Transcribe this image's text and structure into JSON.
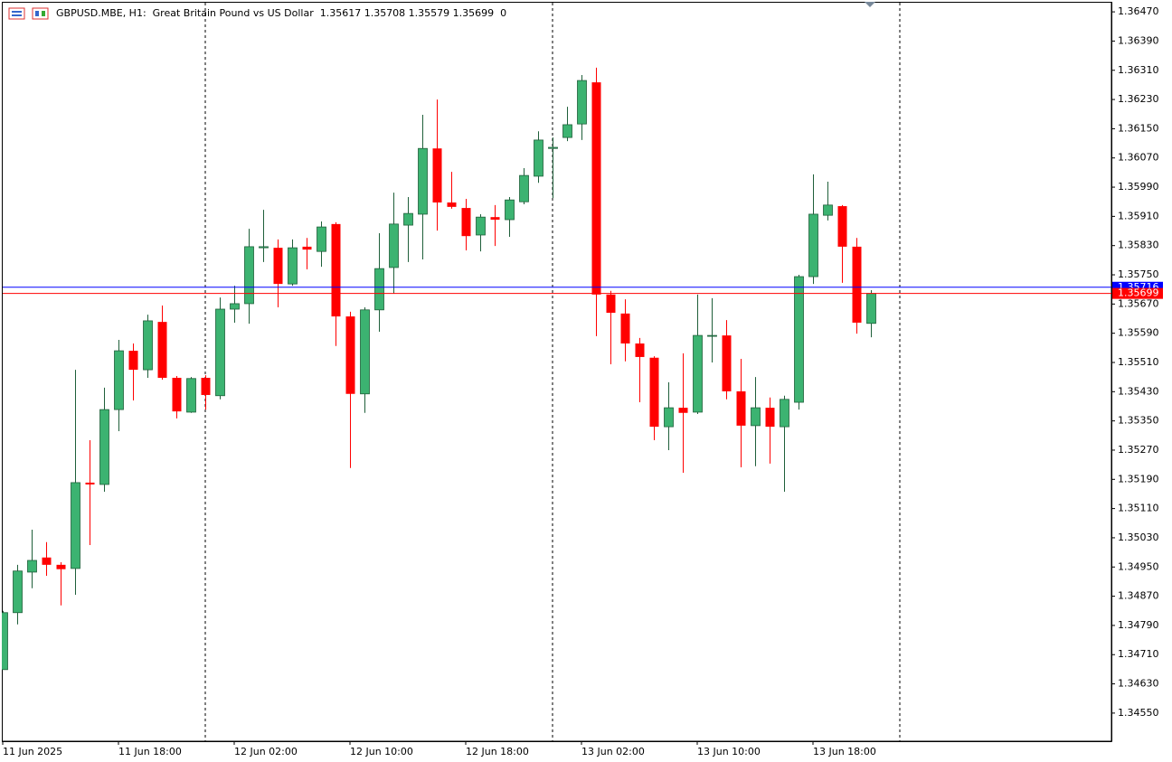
{
  "chart_data": {
    "type": "candlestick",
    "title": "GBPUSD.MBE, H1:  Great Britain Pound vs US Dollar  1.35617 1.35708 1.35579 1.35699  0",
    "categories": [
      "11 Jun 2025",
      null,
      null,
      null,
      null,
      null,
      null,
      null,
      "11 Jun 18:00",
      null,
      null,
      null,
      null,
      null,
      null,
      null,
      "12 Jun 02:00",
      null,
      null,
      null,
      null,
      null,
      null,
      null,
      "12 Jun 10:00",
      null,
      null,
      null,
      null,
      null,
      null,
      null,
      "12 Jun 18:00",
      null,
      null,
      null,
      null,
      null,
      null,
      null,
      "13 Jun 02:00",
      null,
      null,
      null,
      null,
      null,
      null,
      null,
      "13 Jun 10:00",
      null,
      null,
      null,
      null,
      null,
      null,
      null,
      "13 Jun 18:00",
      null,
      null,
      null,
      null
    ],
    "open": [
      1.34669,
      1.34825,
      1.34936,
      1.34976,
      1.34956,
      1.34946,
      1.35181,
      1.35176,
      1.35381,
      1.35542,
      1.3549,
      1.35621,
      1.35468,
      1.35374,
      1.35468,
      1.35419,
      1.35656,
      1.35671,
      1.35824,
      1.35824,
      1.35725,
      1.35827,
      1.35814,
      1.35889,
      1.35636,
      1.35424,
      1.35654,
      1.3577,
      1.35886,
      1.35916,
      1.36096,
      1.35948,
      1.35933,
      1.35859,
      1.35908,
      1.35901,
      1.3595,
      1.3602,
      1.36096,
      1.36126,
      1.36163,
      1.36277,
      1.35696,
      1.35644,
      1.35562,
      1.35523,
      1.35334,
      1.35386,
      1.35374,
      1.35584,
      1.35584,
      1.35431,
      1.35337,
      1.35386,
      1.35334,
      1.35401,
      1.35745,
      1.35913,
      1.35938,
      1.35827,
      1.35617
    ],
    "high": [
      1.3483,
      1.34956,
      1.35052,
      1.35018,
      1.34963,
      1.3549,
      1.35297,
      1.35441,
      1.35572,
      1.35562,
      1.35641,
      1.35666,
      1.35473,
      1.3547,
      1.35475,
      1.35688,
      1.3572,
      1.35876,
      1.35928,
      1.35847,
      1.35847,
      1.35851,
      1.35896,
      1.35894,
      1.35649,
      1.35661,
      1.35864,
      1.35975,
      1.35963,
      1.36188,
      1.3623,
      1.36032,
      1.35958,
      1.35916,
      1.35941,
      1.35963,
      1.36042,
      1.36143,
      1.36126,
      1.3621,
      1.36297,
      1.36317,
      1.35706,
      1.35683,
      1.35577,
      1.35527,
      1.35456,
      1.35535,
      1.35696,
      1.35686,
      1.35626,
      1.3552,
      1.3547,
      1.35414,
      1.35419,
      1.3575,
      1.36025,
      1.36005,
      1.35941,
      1.35851,
      1.35708
    ],
    "low": [
      1.34669,
      1.34793,
      1.34892,
      1.34926,
      1.34845,
      1.34874,
      1.3501,
      1.35156,
      1.35322,
      1.35406,
      1.35468,
      1.35463,
      1.35357,
      1.35372,
      1.35381,
      1.35409,
      1.35619,
      1.35616,
      1.35785,
      1.35661,
      1.3572,
      1.35765,
      1.35772,
      1.35555,
      1.35221,
      1.35372,
      1.35594,
      1.35698,
      1.35785,
      1.35792,
      1.35871,
      1.35931,
      1.35817,
      1.35814,
      1.35829,
      1.35854,
      1.35943,
      1.36002,
      1.3596,
      1.36116,
      1.36119,
      1.35582,
      1.35505,
      1.35513,
      1.35401,
      1.35297,
      1.3527,
      1.35208,
      1.35369,
      1.3551,
      1.35409,
      1.35223,
      1.35226,
      1.35233,
      1.35156,
      1.35381,
      1.35725,
      1.35899,
      1.35728,
      1.35589,
      1.35579
    ],
    "close": [
      1.34825,
      1.34939,
      1.34968,
      1.34956,
      1.34944,
      1.35181,
      1.35176,
      1.35381,
      1.35542,
      1.3549,
      1.35624,
      1.35468,
      1.35376,
      1.35466,
      1.35421,
      1.35656,
      1.35671,
      1.35827,
      1.35827,
      1.35725,
      1.35824,
      1.35819,
      1.35881,
      1.35636,
      1.35424,
      1.35654,
      1.35767,
      1.35889,
      1.35918,
      1.36096,
      1.35948,
      1.35936,
      1.35856,
      1.35908,
      1.35901,
      1.35955,
      1.36022,
      1.36119,
      1.36099,
      1.36161,
      1.36282,
      1.35696,
      1.35646,
      1.35562,
      1.35525,
      1.35334,
      1.35386,
      1.35372,
      1.35584,
      1.35584,
      1.35431,
      1.35337,
      1.35386,
      1.35334,
      1.35409,
      1.35745,
      1.35916,
      1.35941,
      1.35827,
      1.35619,
      1.35699
    ],
    "up_color": "#3cb371",
    "down_color": "#ff0000",
    "ylim": [
      1.34473,
      1.36495
    ],
    "yticks": [
      {
        "value": 1.3647,
        "label": "1.36470"
      },
      {
        "value": 1.3639,
        "label": "1.36390"
      },
      {
        "value": 1.3631,
        "label": "1.36310"
      },
      {
        "value": 1.3623,
        "label": "1.36230"
      },
      {
        "value": 1.3615,
        "label": "1.36150"
      },
      {
        "value": 1.3607,
        "label": "1.36070"
      },
      {
        "value": 1.3599,
        "label": "1.35990"
      },
      {
        "value": 1.3591,
        "label": "1.35910"
      },
      {
        "value": 1.3583,
        "label": "1.35830"
      },
      {
        "value": 1.3575,
        "label": "1.35750"
      },
      {
        "value": 1.3567,
        "label": "1.35670"
      },
      {
        "value": 1.3559,
        "label": "1.35590"
      },
      {
        "value": 1.3551,
        "label": "1.35510"
      },
      {
        "value": 1.3543,
        "label": "1.35430"
      },
      {
        "value": 1.3535,
        "label": "1.35350"
      },
      {
        "value": 1.3527,
        "label": "1.35270"
      },
      {
        "value": 1.3519,
        "label": "1.35190"
      },
      {
        "value": 1.3511,
        "label": "1.35110"
      },
      {
        "value": 1.3503,
        "label": "1.35030"
      },
      {
        "value": 1.3495,
        "label": "1.34950"
      },
      {
        "value": 1.3487,
        "label": "1.34870"
      },
      {
        "value": 1.3479,
        "label": "1.34790"
      },
      {
        "value": 1.3471,
        "label": "1.34710"
      },
      {
        "value": 1.3463,
        "label": "1.34630"
      },
      {
        "value": 1.3455,
        "label": "1.34550"
      }
    ],
    "price_lines": [
      {
        "value": 1.35716,
        "label": "1.35716",
        "color": "#0000ff"
      },
      {
        "value": 1.35699,
        "label": "1.35699",
        "color": "#ff0000"
      }
    ],
    "grid": false
  }
}
